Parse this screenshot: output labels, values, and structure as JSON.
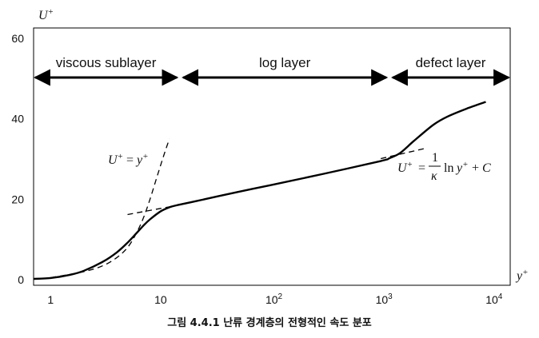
{
  "chart_data": {
    "type": "line",
    "x_scale": "log",
    "xlim": [
      0.7,
      15000
    ],
    "ylim": [
      0,
      60
    ],
    "yaxis_label": {
      "base": "U",
      "sup": "+"
    },
    "xaxis_label": {
      "base": "y",
      "sup": "+"
    },
    "y_ticks": [
      {
        "value": 0,
        "label": "0"
      },
      {
        "value": 20,
        "label": "20"
      },
      {
        "value": 40,
        "label": "40"
      },
      {
        "value": 60,
        "label": "60"
      }
    ],
    "x_ticks": [
      {
        "value": 1,
        "base": "1",
        "exp": ""
      },
      {
        "value": 10,
        "base": "10",
        "exp": ""
      },
      {
        "value": 100,
        "base": "10",
        "exp": "2"
      },
      {
        "value": 1000,
        "base": "10",
        "exp": "3"
      },
      {
        "value": 10000,
        "base": "10",
        "exp": "4"
      }
    ],
    "regions": [
      {
        "label": "viscous sublayer",
        "from": 0.7,
        "to": 15
      },
      {
        "label": "log layer",
        "from": 15,
        "to": 1200
      },
      {
        "label": "defect layer",
        "from": 1200,
        "to": 15000
      }
    ],
    "series": [
      {
        "style": "solid",
        "points": [
          [
            0.7,
            0.2
          ],
          [
            1,
            0.4
          ],
          [
            1.5,
            1.2
          ],
          [
            2,
            2.2
          ],
          [
            3,
            4.5
          ],
          [
            4,
            6.8
          ],
          [
            5,
            9.2
          ],
          [
            6,
            11.5
          ],
          [
            7,
            13.5
          ],
          [
            8,
            15.0
          ],
          [
            10,
            17.0
          ],
          [
            12,
            18.0
          ],
          [
            14,
            18.5
          ],
          [
            20,
            19.4
          ],
          [
            50,
            21.8
          ],
          [
            100,
            23.5
          ],
          [
            300,
            26.3
          ],
          [
            1000,
            29.5
          ],
          [
            1200,
            30.2
          ],
          [
            1500,
            31.5
          ],
          [
            2000,
            34.5
          ],
          [
            3000,
            38.5
          ],
          [
            4000,
            40.5
          ],
          [
            6000,
            42.5
          ],
          [
            9000,
            44.2
          ]
        ]
      },
      {
        "style": "dashed",
        "formula_parts": [
          "U",
          "+",
          " = ",
          "y",
          "+"
        ],
        "points": [
          [
            1,
            0.5
          ],
          [
            2,
            2.0
          ],
          [
            3,
            3.5
          ],
          [
            4,
            5.5
          ],
          [
            5,
            8.0
          ],
          [
            6,
            11.5
          ],
          [
            7,
            15.5
          ],
          [
            8,
            20.0
          ],
          [
            9,
            24.5
          ],
          [
            10,
            28.5
          ],
          [
            11,
            32.0
          ],
          [
            12,
            35.0
          ]
        ]
      },
      {
        "style": "dashed",
        "points": [
          [
            5,
            16.2
          ],
          [
            15,
            18.6
          ]
        ]
      },
      {
        "style": "dashed",
        "points": [
          [
            1000,
            30.1
          ],
          [
            2500,
            32.6
          ]
        ]
      }
    ],
    "log_law_formula": {
      "lhs": "U",
      "lhs_sup": "+",
      "eq": "=",
      "num": "1",
      "den": "κ",
      "ln": "ln",
      "y": "y",
      "y_sup": "+",
      "plus": "+",
      "C": "C"
    },
    "caption": "그림 4.4.1 난류 경계층의 전형적인 속도 분포"
  }
}
